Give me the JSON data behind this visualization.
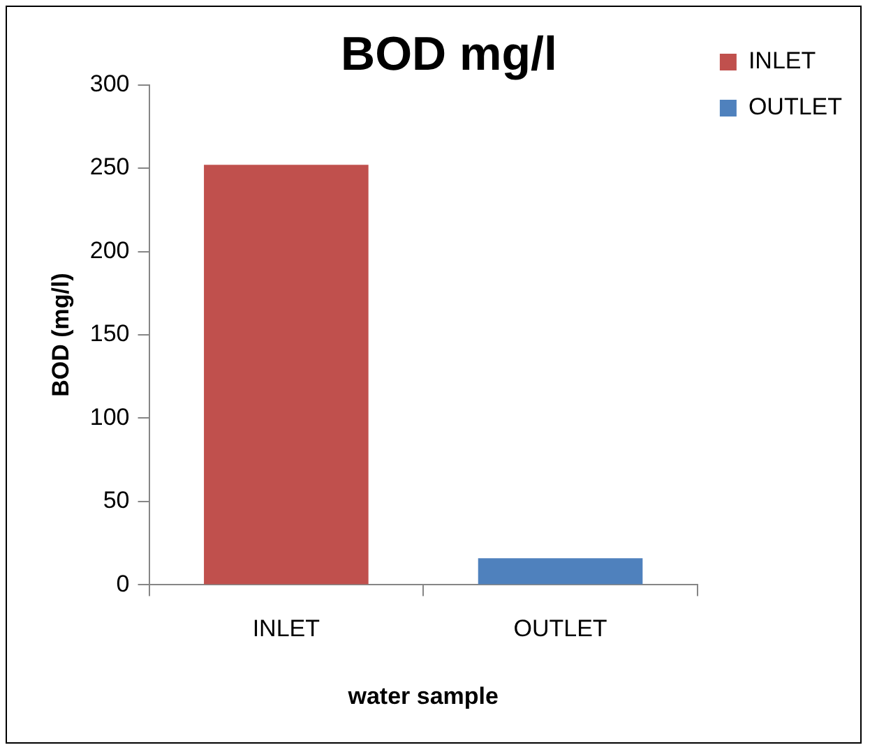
{
  "chart_data": {
    "type": "bar",
    "title": "BOD mg/l",
    "xlabel": "water sample",
    "ylabel": "BOD (mg/l)",
    "categories": [
      "INLET",
      "OUTLET"
    ],
    "series": [
      {
        "name": "INLET",
        "color": "#c0504d",
        "values": [
          252,
          null
        ]
      },
      {
        "name": "OUTLET",
        "color": "#4f81bd",
        "values": [
          null,
          16
        ]
      }
    ],
    "ylim": [
      0,
      300
    ],
    "yticks": [
      0,
      50,
      100,
      150,
      200,
      250,
      300
    ],
    "grid": false,
    "legend": "top right"
  }
}
